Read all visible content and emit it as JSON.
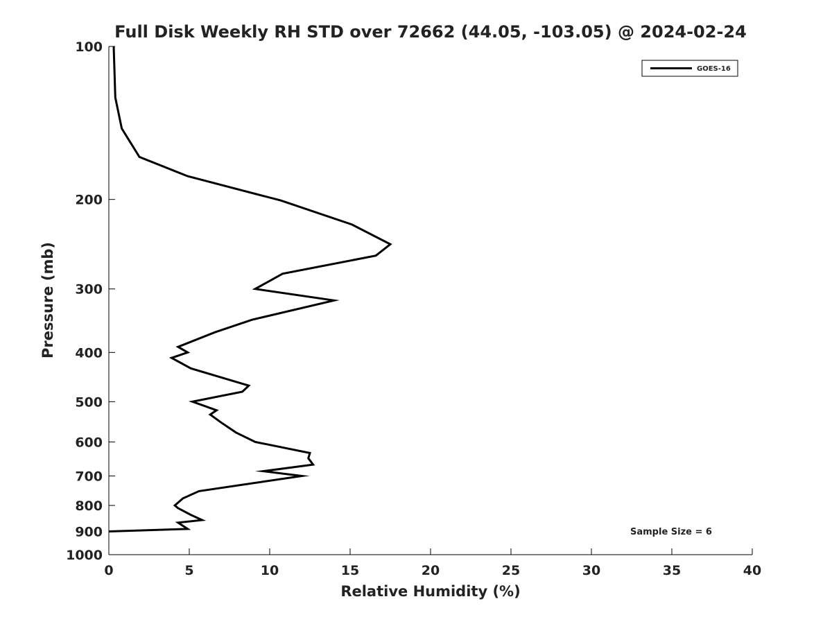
{
  "chart_data": {
    "type": "line",
    "title": "Full Disk Weekly RH STD over 72662 (44.05, -103.05) @ 2024-02-24",
    "xlabel": "Relative Humidity (%)",
    "ylabel": "Pressure (mb)",
    "xlim": [
      0,
      40
    ],
    "ylim": [
      100,
      1000
    ],
    "y_scale": "log",
    "y_inverted": true,
    "grid": false,
    "legend_placement": "top-right",
    "xticks": [
      0,
      5,
      10,
      15,
      20,
      25,
      30,
      35,
      40
    ],
    "xtick_labels": [
      "0",
      "5",
      "10",
      "15",
      "20",
      "25",
      "30",
      "35",
      "40"
    ],
    "yticks": [
      100,
      200,
      300,
      400,
      500,
      600,
      700,
      800,
      900,
      1000
    ],
    "ytick_labels": [
      "100",
      "200",
      "300",
      "400",
      "500",
      "600",
      "700",
      "800",
      "900",
      "1000"
    ],
    "annotation": "Sample Size = 6",
    "series": [
      {
        "name": "GOES-16",
        "color": "#000000",
        "x": [
          0.3,
          0.4,
          0.8,
          1.9,
          4.9,
          10.7,
          15.1,
          17.5,
          16.6,
          10.8,
          9.1,
          14.0,
          8.9,
          6.6,
          4.3,
          4.9,
          3.9,
          5.1,
          8.7,
          8.3,
          5.2,
          6.7,
          6.3,
          7.0,
          7.9,
          9.1,
          12.5,
          12.4,
          12.7,
          9.6,
          12.0,
          5.6,
          4.6,
          4.1,
          4.3,
          5.1,
          5.8,
          4.3,
          4.9,
          0.0
        ],
        "y": [
          100,
          126,
          145,
          165,
          180,
          201,
          224,
          245,
          258,
          280,
          300,
          316,
          345,
          365,
          390,
          400,
          410,
          430,
          465,
          478,
          500,
          520,
          530,
          550,
          575,
          600,
          631,
          646,
          665,
          685,
          700,
          750,
          775,
          800,
          810,
          835,
          855,
          865,
          890,
          900
        ]
      }
    ]
  }
}
